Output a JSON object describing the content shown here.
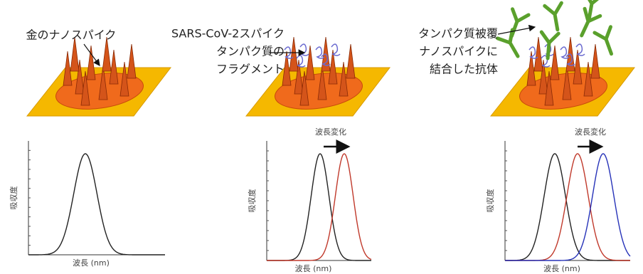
{
  "panels": [
    {
      "label": [
        "金のナノスパイク"
      ],
      "y_axis_label": "吸収度",
      "x_axis_label": "波長 (nm)"
    },
    {
      "label": [
        "SARS-CoV-2スパイク",
        "タンパク質の",
        "フラグメント"
      ],
      "shift_label": "波長変化",
      "y_axis_label": "吸収度",
      "x_axis_label": "波長 (nm)"
    },
    {
      "label": [
        "タンパク質被覆",
        "ナノスパイクに",
        "結合した抗体"
      ],
      "shift_label": "波長変化",
      "y_axis_label": "吸収度",
      "x_axis_label": "波長 (nm)"
    }
  ]
}
